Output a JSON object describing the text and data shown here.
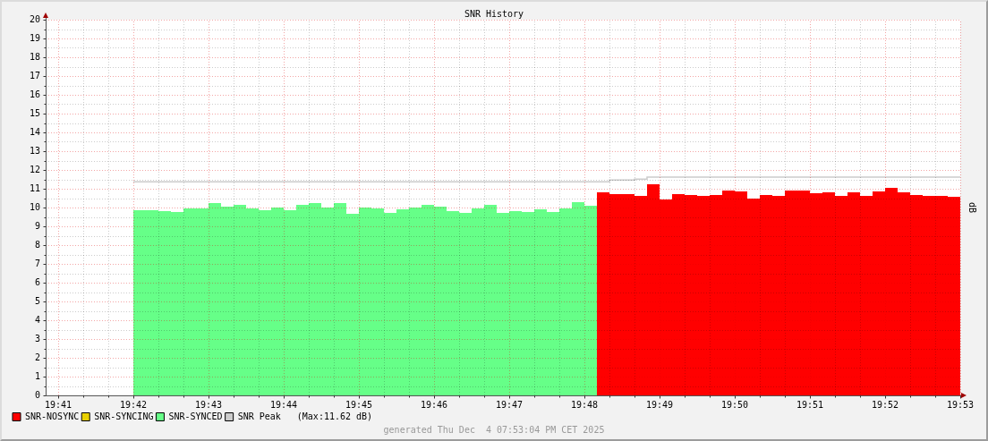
{
  "chart_data": {
    "type": "area",
    "title": "SNR History",
    "ylabel": "dB",
    "annotations": [
      "(Max:11.62 dB)",
      "generated Thu Dec  4 07:53:04 PM CET 2025"
    ],
    "xlim": [
      "2025-12-04T19:40:50",
      "2025-12-04T19:53:00"
    ],
    "xticks": [
      {
        "value": "2025-12-04T19:41",
        "label": "19:41"
      },
      {
        "value": "2025-12-04T19:41:20",
        "label": null
      },
      {
        "value": "2025-12-04T19:41:40",
        "label": null
      },
      {
        "value": "2025-12-04T19:42",
        "label": "19:42"
      },
      {
        "value": "2025-12-04T19:42:20",
        "label": null
      },
      {
        "value": "2025-12-04T19:42:40",
        "label": null
      },
      {
        "value": "2025-12-04T19:43",
        "label": "19:43"
      },
      {
        "value": "2025-12-04T19:43:20",
        "label": null
      },
      {
        "value": "2025-12-04T19:43:40",
        "label": null
      },
      {
        "value": "2025-12-04T19:44",
        "label": "19:44"
      },
      {
        "value": "2025-12-04T19:44:20",
        "label": null
      },
      {
        "value": "2025-12-04T19:44:40",
        "label": null
      },
      {
        "value": "2025-12-04T19:45",
        "label": "19:45"
      },
      {
        "value": "2025-12-04T19:45:20",
        "label": null
      },
      {
        "value": "2025-12-04T19:45:40",
        "label": null
      },
      {
        "value": "2025-12-04T19:46",
        "label": "19:46"
      },
      {
        "value": "2025-12-04T19:46:20",
        "label": null
      },
      {
        "value": "2025-12-04T19:46:40",
        "label": null
      },
      {
        "value": "2025-12-04T19:47",
        "label": "19:47"
      },
      {
        "value": "2025-12-04T19:47:20",
        "label": null
      },
      {
        "value": "2025-12-04T19:47:40",
        "label": null
      },
      {
        "value": "2025-12-04T19:48",
        "label": "19:48"
      },
      {
        "value": "2025-12-04T19:48:20",
        "label": null
      },
      {
        "value": "2025-12-04T19:48:40",
        "label": null
      },
      {
        "value": "2025-12-04T19:49",
        "label": "19:49"
      },
      {
        "value": "2025-12-04T19:49:20",
        "label": null
      },
      {
        "value": "2025-12-04T19:49:40",
        "label": null
      },
      {
        "value": "2025-12-04T19:50",
        "label": "19:50"
      },
      {
        "value": "2025-12-04T19:50:20",
        "label": null
      },
      {
        "value": "2025-12-04T19:50:40",
        "label": null
      },
      {
        "value": "2025-12-04T19:51",
        "label": "19:51"
      },
      {
        "value": "2025-12-04T19:51:20",
        "label": null
      },
      {
        "value": "2025-12-04T19:51:40",
        "label": null
      },
      {
        "value": "2025-12-04T19:52",
        "label": "19:52"
      },
      {
        "value": "2025-12-04T19:52:20",
        "label": null
      },
      {
        "value": "2025-12-04T19:52:40",
        "label": null
      },
      {
        "value": "2025-12-04T19:53",
        "label": "19:53"
      }
    ],
    "ylim": [
      0,
      20
    ],
    "yticks": [
      0,
      {
        "value": 0.5,
        "label": null
      },
      1,
      {
        "value": 1.5,
        "label": null
      },
      2,
      {
        "value": 2.5,
        "label": null
      },
      3,
      {
        "value": 3.5,
        "label": null
      },
      4,
      {
        "value": 4.5,
        "label": null
      },
      5,
      {
        "value": 5.5,
        "label": null
      },
      6,
      {
        "value": 6.5,
        "label": null
      },
      7,
      {
        "value": 7.5,
        "label": null
      },
      8,
      {
        "value": 8.5,
        "label": null
      },
      9,
      {
        "value": 9.5,
        "label": null
      },
      10,
      {
        "value": 10.5,
        "label": null
      },
      11,
      {
        "value": 11.5,
        "label": null
      },
      12,
      {
        "value": 12.5,
        "label": null
      },
      13,
      {
        "value": 13.5,
        "label": null
      },
      14,
      {
        "value": 14.5,
        "label": null
      },
      15,
      {
        "value": 15.5,
        "label": null
      },
      16,
      {
        "value": 16.5,
        "label": null
      },
      17,
      {
        "value": 17.5,
        "label": null
      },
      18,
      {
        "value": 18.5,
        "label": null
      },
      19,
      {
        "value": 19.5,
        "label": null
      },
      20
    ],
    "grid": true,
    "legend": "bottom left",
    "series": [
      {
        "name": "SNR-NOSYNC",
        "color": "#ff0000",
        "x": [
          "2025-12-04T19:48:10",
          "2025-12-04T19:48:20",
          "2025-12-04T19:48:30",
          "2025-12-04T19:48:40",
          "2025-12-04T19:48:50",
          "2025-12-04T19:49:00",
          "2025-12-04T19:49:10",
          "2025-12-04T19:49:20",
          "2025-12-04T19:49:30",
          "2025-12-04T19:49:40",
          "2025-12-04T19:49:50",
          "2025-12-04T19:50:00",
          "2025-12-04T19:50:10",
          "2025-12-04T19:50:20",
          "2025-12-04T19:50:30",
          "2025-12-04T19:50:40",
          "2025-12-04T19:50:50",
          "2025-12-04T19:51:00",
          "2025-12-04T19:51:10",
          "2025-12-04T19:51:20",
          "2025-12-04T19:51:30",
          "2025-12-04T19:51:40",
          "2025-12-04T19:51:50",
          "2025-12-04T19:52:00",
          "2025-12-04T19:52:10",
          "2025-12-04T19:52:20",
          "2025-12-04T19:52:30",
          "2025-12-04T19:52:40",
          "2025-12-04T19:52:50",
          "2025-12-04T19:53:00"
        ],
        "values": [
          10.81,
          10.71,
          10.71,
          10.62,
          11.24,
          10.43,
          10.71,
          10.67,
          10.62,
          10.67,
          10.9,
          10.86,
          10.48,
          10.67,
          10.62,
          10.9,
          10.9,
          10.76,
          10.81,
          10.62,
          10.81,
          10.62,
          10.86,
          11.05,
          10.81,
          10.67,
          10.62,
          10.62,
          10.57,
          10.57
        ]
      },
      {
        "name": "SNR-SYNCING",
        "color": "#e8d000"
      },
      {
        "name": "SNR-SYNCED",
        "color": "#66ff88",
        "x": [
          "2025-12-04T19:42:00",
          "2025-12-04T19:42:10",
          "2025-12-04T19:42:20",
          "2025-12-04T19:42:30",
          "2025-12-04T19:42:40",
          "2025-12-04T19:42:50",
          "2025-12-04T19:43:00",
          "2025-12-04T19:43:10",
          "2025-12-04T19:43:20",
          "2025-12-04T19:43:30",
          "2025-12-04T19:43:40",
          "2025-12-04T19:43:50",
          "2025-12-04T19:44:00",
          "2025-12-04T19:44:10",
          "2025-12-04T19:44:20",
          "2025-12-04T19:44:30",
          "2025-12-04T19:44:40",
          "2025-12-04T19:44:50",
          "2025-12-04T19:45:00",
          "2025-12-04T19:45:10",
          "2025-12-04T19:45:20",
          "2025-12-04T19:45:30",
          "2025-12-04T19:45:40",
          "2025-12-04T19:45:50",
          "2025-12-04T19:46:00",
          "2025-12-04T19:46:10",
          "2025-12-04T19:46:20",
          "2025-12-04T19:46:30",
          "2025-12-04T19:46:40",
          "2025-12-04T19:46:50",
          "2025-12-04T19:47:00",
          "2025-12-04T19:47:10",
          "2025-12-04T19:47:20",
          "2025-12-04T19:47:30",
          "2025-12-04T19:47:40",
          "2025-12-04T19:47:50",
          "2025-12-04T19:48:00",
          "2025-12-04T19:48:10"
        ],
        "values": [
          9.86,
          9.86,
          9.81,
          9.76,
          9.95,
          9.95,
          10.24,
          10.05,
          10.14,
          9.95,
          9.86,
          10.0,
          9.86,
          10.14,
          10.24,
          10.0,
          10.24,
          9.67,
          10.0,
          9.95,
          9.71,
          9.9,
          10.0,
          10.14,
          10.05,
          9.81,
          9.71,
          9.95,
          10.14,
          9.71,
          9.81,
          9.76,
          9.9,
          9.76,
          9.95,
          10.29,
          10.1,
          10.1
        ]
      },
      {
        "name": "SNR Peak",
        "type": "step",
        "color": "#cccccc",
        "x": [
          "2025-12-04T19:42:00",
          "2025-12-04T19:48:20",
          "2025-12-04T19:48:40",
          "2025-12-04T19:48:50",
          "2025-12-04T19:53:00"
        ],
        "values": [
          11.37,
          11.46,
          11.51,
          11.62,
          11.62
        ]
      }
    ]
  }
}
